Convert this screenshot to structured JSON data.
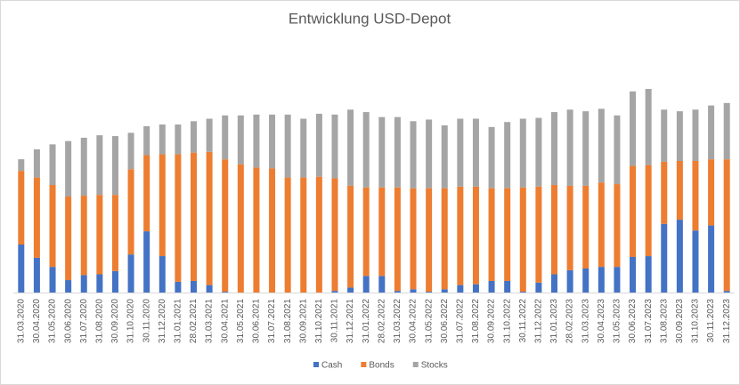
{
  "chart_data": {
    "type": "bar",
    "stacked": true,
    "title": "Entwicklung USD-Depot",
    "legend": "bottom",
    "categories": [
      "31.03.2020",
      "30.04.2020",
      "31.05.2020",
      "30.06.2020",
      "31.07.2020",
      "31.08.2020",
      "30.09.2020",
      "31.10.2020",
      "30.11.2020",
      "31.12.2020",
      "31.01.2021",
      "28.02.2021",
      "31.03.2021",
      "30.04.2021",
      "31.05.2021",
      "30.06.2021",
      "31.07.2021",
      "31.08.2021",
      "30.09.2021",
      "31.10.2021",
      "30.11.2021",
      "31.12.2021",
      "31.01.2022",
      "28.02.2022",
      "31.03.2022",
      "30.04.2022",
      "31.05.2022",
      "30.06.2022",
      "31.07.2022",
      "31.08.2022",
      "30.09.2022",
      "31.10.2022",
      "30.11.2022",
      "31.12.2022",
      "31.01.2023",
      "28.02.2023",
      "31.03.2023",
      "30.04.2023",
      "31.05.2023",
      "30.06.2023",
      "31.07.2023",
      "31.08.2023",
      "30.09.2023",
      "31.10.2023",
      "30.11.2023",
      "31.12.2023"
    ],
    "series": [
      {
        "name": "Cash",
        "color": "#4472c4",
        "values": [
          58,
          42,
          31,
          15,
          21,
          22,
          26,
          46,
          74,
          44,
          13,
          14,
          9,
          1,
          0,
          0,
          0,
          0,
          0,
          0,
          2,
          6,
          20,
          20,
          2,
          4,
          1,
          4,
          9,
          10,
          14,
          14,
          1,
          12,
          22,
          27,
          29,
          31,
          31,
          43,
          44,
          83,
          88,
          75,
          81,
          2
        ]
      },
      {
        "name": "Bonds",
        "color": "#ed7d31",
        "values": [
          89,
          97,
          99,
          101,
          96,
          96,
          92,
          103,
          92,
          123,
          154,
          155,
          161,
          160,
          155,
          151,
          150,
          139,
          139,
          140,
          136,
          123,
          107,
          107,
          125,
          122,
          125,
          122,
          119,
          118,
          112,
          112,
          126,
          116,
          108,
          102,
          100,
          102,
          100,
          110,
          110,
          75,
          71,
          84,
          80,
          159
        ]
      },
      {
        "name": "Stocks",
        "color": "#a5a5a5",
        "values": [
          14,
          34,
          49,
          67,
          70,
          72,
          71,
          44,
          35,
          36,
          36,
          38,
          40,
          53,
          59,
          64,
          65,
          76,
          71,
          76,
          77,
          92,
          91,
          85,
          85,
          81,
          83,
          76,
          82,
          82,
          74,
          80,
          83,
          83,
          88,
          92,
          90,
          89,
          83,
          90,
          92,
          63,
          60,
          62,
          65,
          68
        ]
      }
    ]
  }
}
